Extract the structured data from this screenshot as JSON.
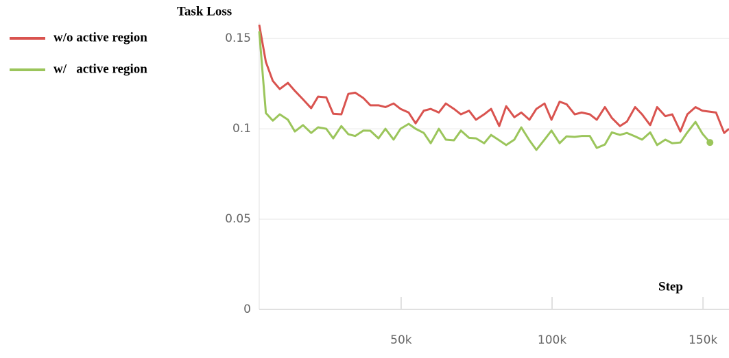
{
  "chart_data": {
    "type": "line",
    "title": "Task Loss",
    "x_label": "Step",
    "legend": "upper left",
    "grid": true,
    "xlim": [
      3000,
      158600
    ],
    "ylim": [
      0,
      0.155
    ],
    "xticks": [
      {
        "value": 50000,
        "label": "50k"
      },
      {
        "value": 100000,
        "label": "100k"
      },
      {
        "value": 150000,
        "label": "150k"
      }
    ],
    "yticks": [
      0,
      0.05,
      0.1,
      0.15
    ],
    "series": [
      {
        "name": "w/o active region",
        "color": "#d9534f",
        "x": [
          3000,
          5200,
          7500,
          9800,
          12500,
          14800,
          17500,
          20200,
          22500,
          25200,
          27500,
          30200,
          32500,
          34800,
          37500,
          39800,
          42500,
          44800,
          47500,
          49800,
          52500,
          54800,
          57500,
          59800,
          62500,
          64800,
          67500,
          69800,
          72500,
          74800,
          77500,
          79800,
          82500,
          84800,
          87500,
          89800,
          92500,
          94800,
          97500,
          99800,
          102500,
          104800,
          107500,
          109800,
          112500,
          114800,
          117500,
          119800,
          122500,
          124800,
          127500,
          129800,
          132500,
          134800,
          137500,
          139800,
          142500,
          144800,
          147500,
          149800,
          154300,
          157000,
          158600
        ],
        "values": [
          0.1576,
          0.137,
          0.1265,
          0.122,
          0.1254,
          0.121,
          0.1163,
          0.1114,
          0.1178,
          0.1174,
          0.1083,
          0.108,
          0.1193,
          0.12,
          0.117,
          0.113,
          0.113,
          0.112,
          0.114,
          0.111,
          0.109,
          0.103,
          0.11,
          0.111,
          0.109,
          0.114,
          0.111,
          0.108,
          0.11,
          0.105,
          0.108,
          0.111,
          0.1015,
          0.1125,
          0.1064,
          0.109,
          0.105,
          0.111,
          0.114,
          0.105,
          0.115,
          0.1136,
          0.108,
          0.109,
          0.108,
          0.105,
          0.112,
          0.106,
          0.1015,
          0.104,
          0.112,
          0.108,
          0.102,
          0.112,
          0.107,
          0.108,
          0.0985,
          0.108,
          0.112,
          0.11,
          0.109,
          0.0977,
          0.1
        ]
      },
      {
        "name": "w/   active region",
        "color": "#9bc55b",
        "x": [
          3000,
          5200,
          7500,
          9800,
          12500,
          14800,
          17500,
          20200,
          22500,
          25200,
          27500,
          30200,
          32500,
          34800,
          37500,
          39800,
          42500,
          44800,
          47500,
          49800,
          52500,
          54800,
          57500,
          59800,
          62500,
          64800,
          67500,
          69800,
          72500,
          74800,
          77500,
          79800,
          82500,
          84800,
          87500,
          89800,
          92500,
          94800,
          97500,
          99800,
          102500,
          104800,
          107500,
          109800,
          112500,
          114800,
          117500,
          119800,
          122500,
          124800,
          127500,
          129800,
          132500,
          134800,
          137500,
          139800,
          142500,
          144800,
          147500,
          149800,
          152300
        ],
        "values": [
          0.154,
          0.1087,
          0.1045,
          0.108,
          0.105,
          0.0985,
          0.102,
          0.0977,
          0.1008,
          0.1,
          0.0947,
          0.1015,
          0.097,
          0.096,
          0.099,
          0.0989,
          0.0947,
          0.1,
          0.094,
          0.1,
          0.1027,
          0.1,
          0.0977,
          0.092,
          0.1,
          0.094,
          0.0936,
          0.099,
          0.095,
          0.0947,
          0.092,
          0.0966,
          0.0936,
          0.091,
          0.094,
          0.1008,
          0.0936,
          0.0883,
          0.094,
          0.099,
          0.092,
          0.0958,
          0.0955,
          0.096,
          0.096,
          0.0894,
          0.0913,
          0.098,
          0.0966,
          0.0977,
          0.0958,
          0.094,
          0.098,
          0.091,
          0.094,
          0.092,
          0.0924,
          0.098,
          0.1038,
          0.0973,
          0.0924
        ]
      }
    ]
  }
}
